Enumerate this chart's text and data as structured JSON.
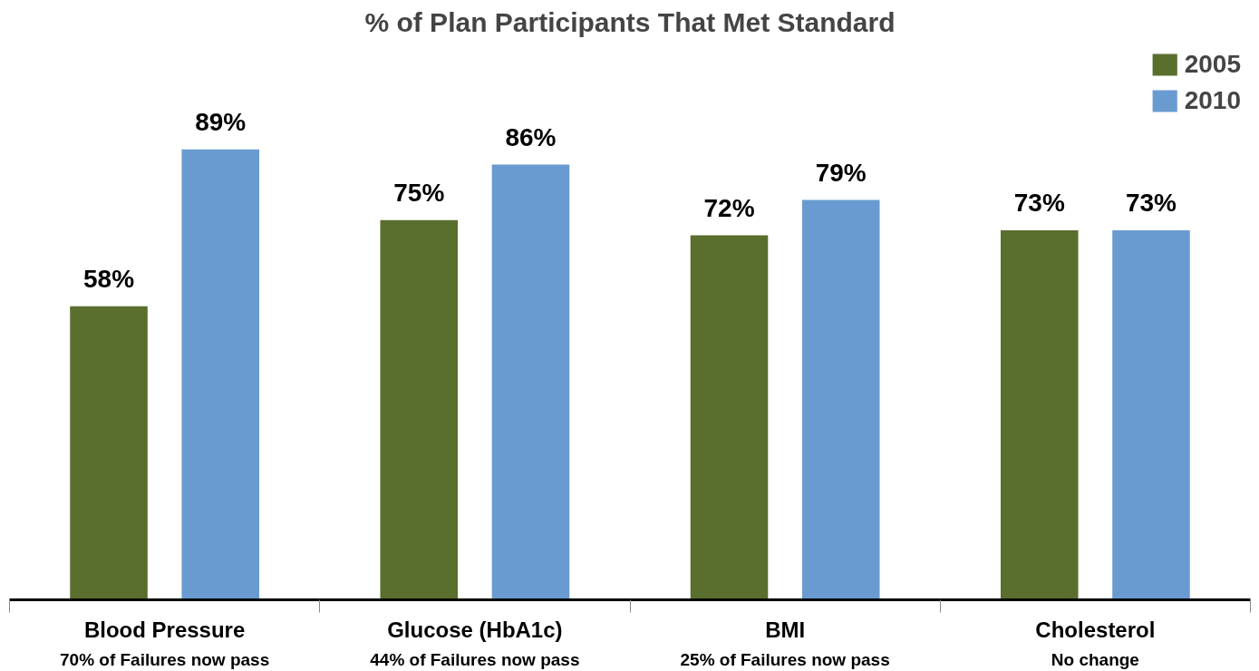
{
  "chart_data": {
    "type": "bar",
    "title": "% of Plan Participants That Met Standard",
    "categories": [
      "Blood Pressure",
      "Glucose (HbA1c)",
      "BMI",
      "Cholesterol"
    ],
    "series": [
      {
        "name": "2005",
        "color": "#5a6e2e",
        "values": [
          58,
          75,
          72,
          73
        ],
        "value_labels": [
          "58%",
          "75%",
          "72%",
          "73%"
        ]
      },
      {
        "name": "2010",
        "color": "#6a9bd0",
        "values": [
          89,
          86,
          79,
          73
        ],
        "value_labels": [
          "89%",
          "86%",
          "79%",
          "73%"
        ]
      }
    ],
    "annotations": [
      "70% of Failures now pass",
      "44% of Failures now pass",
      "25% of Failures now pass",
      "No change"
    ],
    "legend": "top right",
    "grid": false
  }
}
